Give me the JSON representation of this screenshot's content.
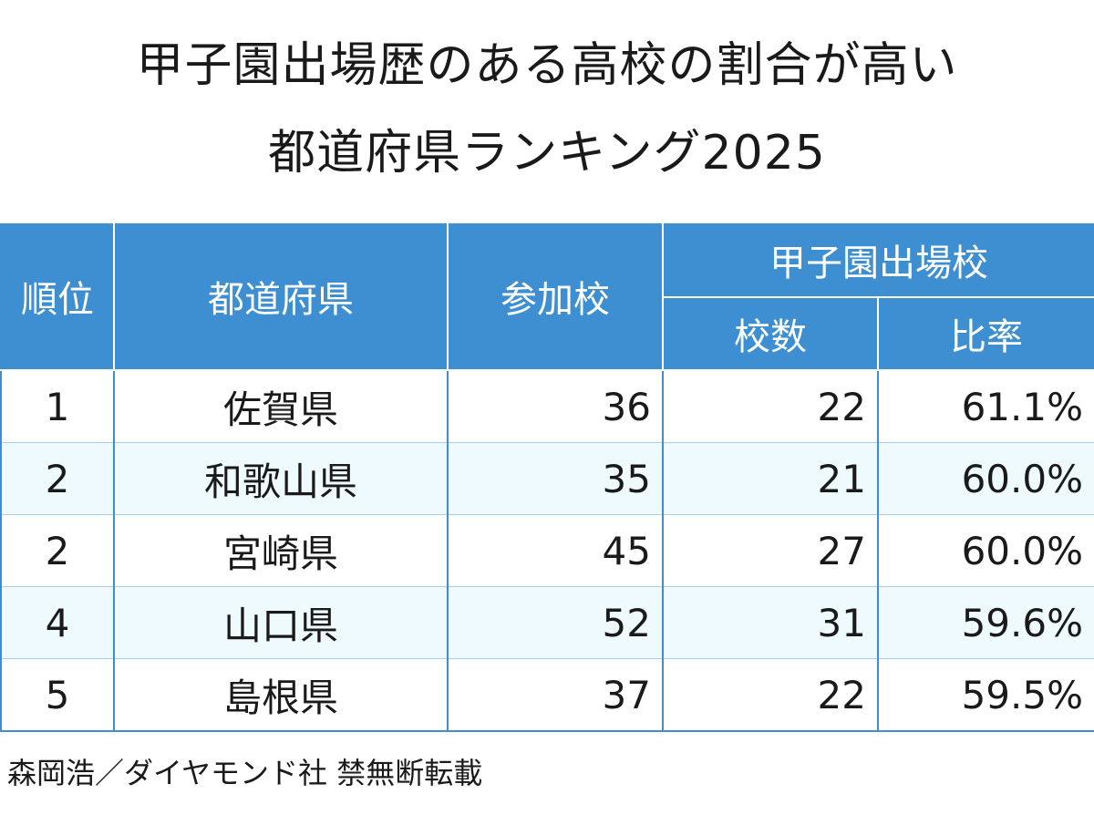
{
  "title": {
    "line1": "甲子園出場歴のある高校の割合が高い",
    "line2": "都道府県ランキング2025"
  },
  "table": {
    "headers": {
      "rank": "順位",
      "prefecture": "都道府県",
      "participating": "参加校",
      "koshien_group": "甲子園出場校",
      "school_count": "校数",
      "ratio": "比率"
    },
    "rows": [
      {
        "rank": "1",
        "prefecture": "佐賀県",
        "participating": "36",
        "count": "22",
        "ratio": "61.1%"
      },
      {
        "rank": "2",
        "prefecture": "和歌山県",
        "participating": "35",
        "count": "21",
        "ratio": "60.0%"
      },
      {
        "rank": "2",
        "prefecture": "宮崎県",
        "participating": "45",
        "count": "27",
        "ratio": "60.0%"
      },
      {
        "rank": "4",
        "prefecture": "山口県",
        "participating": "52",
        "count": "31",
        "ratio": "59.6%"
      },
      {
        "rank": "5",
        "prefecture": "島根県",
        "participating": "37",
        "count": "22",
        "ratio": "59.5%"
      }
    ]
  },
  "credit": "森岡浩／ダイヤモンド社 禁無断転載"
}
